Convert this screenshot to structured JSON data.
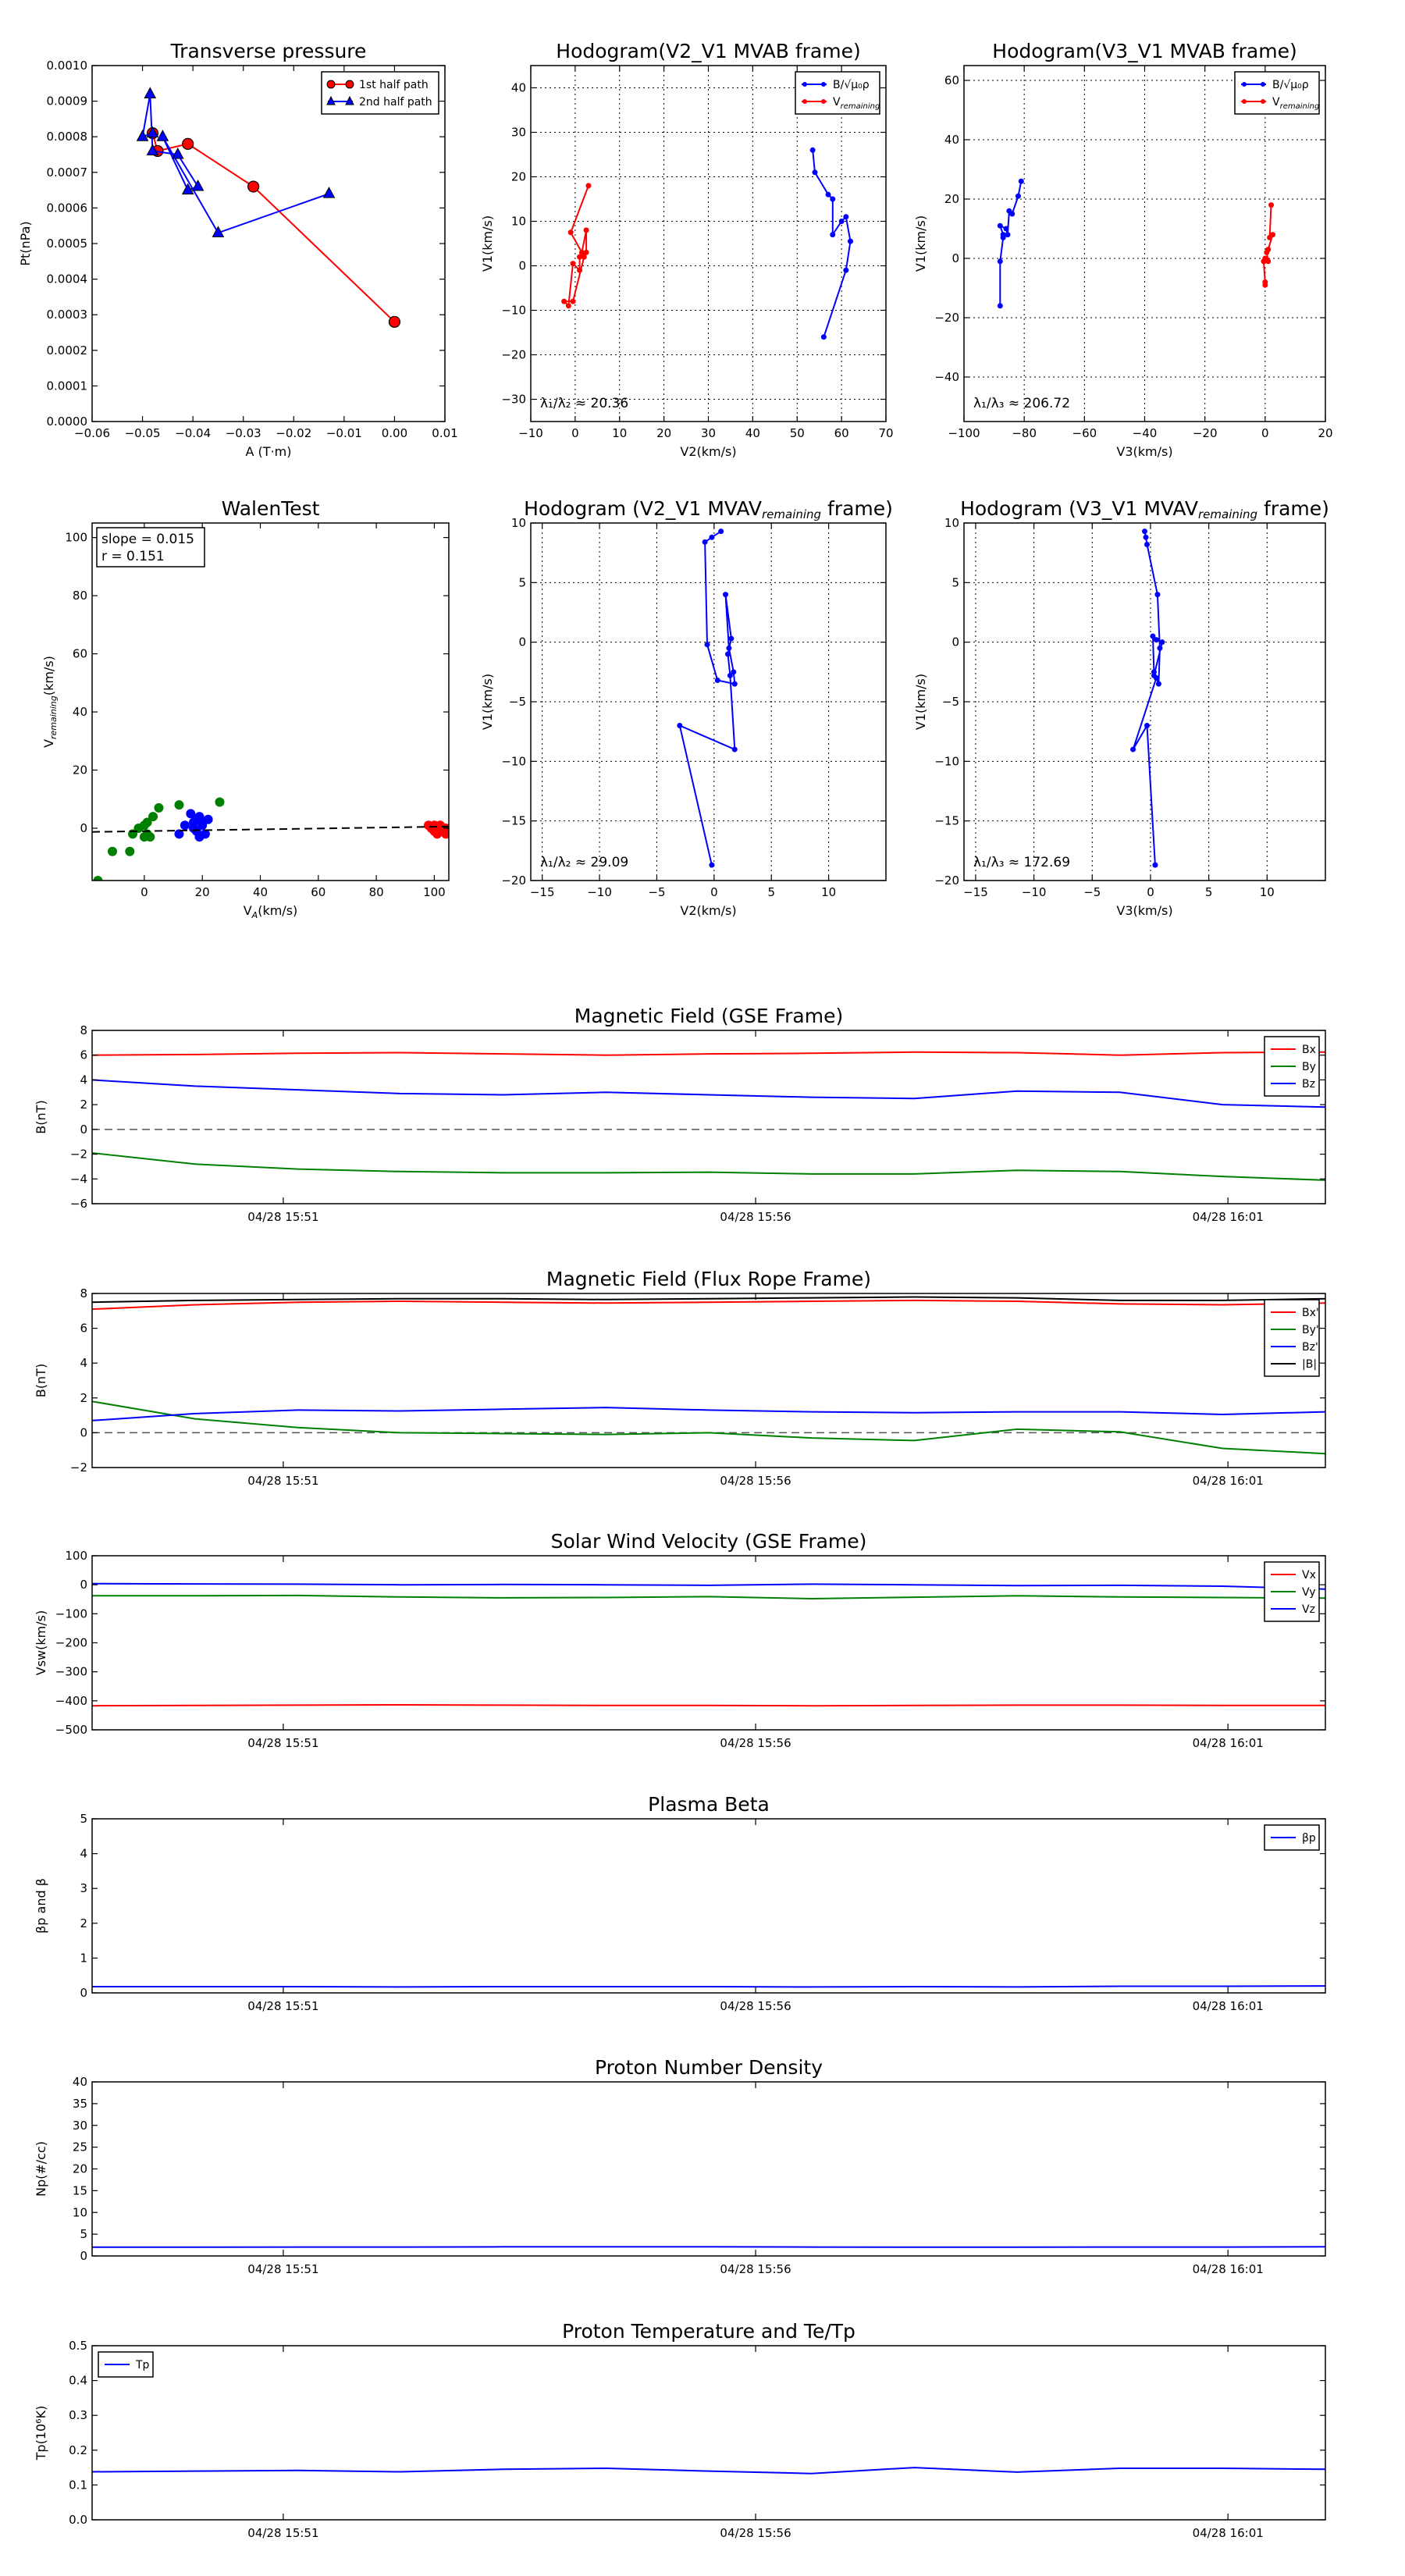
{
  "colors": {
    "red": "#ff0000",
    "blue": "#0000ff",
    "green": "#008000",
    "black": "#000000"
  },
  "time_ticks": [
    "04/28 15:51",
    "04/28 15:56",
    "04/28 16:01"
  ],
  "time_fracs": [
    0.155,
    0.538,
    0.921
  ],
  "chart_data": [
    {
      "id": "transverse-pressure",
      "type": "line",
      "title": "Transverse pressure",
      "xlabel": "A (T·m)",
      "ylabel": "Pt(nPa)",
      "xlim": [
        -0.06,
        0.01
      ],
      "ylim": [
        0,
        0.001
      ],
      "xticks": [
        -0.06,
        -0.05,
        -0.04,
        -0.03,
        -0.02,
        -0.01,
        0.0,
        0.01
      ],
      "xtick_labels": [
        "−0.06",
        "−0.05",
        "−0.04",
        "−0.03",
        "−0.02",
        "−0.01",
        "0.00",
        "0.01"
      ],
      "yticks": [
        0,
        0.0001,
        0.0002,
        0.0003,
        0.0004,
        0.0005,
        0.0006,
        0.0007,
        0.0008,
        0.0009,
        0.001
      ],
      "ytick_labels": [
        "0.0000",
        "0.0001",
        "0.0002",
        "0.0003",
        "0.0004",
        "0.0005",
        "0.0006",
        "0.0007",
        "0.0008",
        "0.0009",
        "0.0010"
      ],
      "legend": "top-right",
      "series": [
        {
          "name": "1st half path",
          "color": "red",
          "marker": "circle",
          "x": [
            0.0,
            -0.028,
            -0.041,
            -0.047,
            -0.048
          ],
          "y": [
            0.00028,
            0.00066,
            0.00078,
            0.00076,
            0.00081
          ]
        },
        {
          "name": "2nd half path",
          "color": "blue",
          "marker": "triangle",
          "x": [
            -0.048,
            -0.05,
            -0.0485,
            -0.048,
            -0.043,
            -0.039,
            -0.041,
            -0.046,
            -0.035,
            -0.013
          ],
          "y": [
            0.00081,
            0.0008,
            0.00092,
            0.00076,
            0.00075,
            0.00066,
            0.00065,
            0.0008,
            0.00053,
            0.00064
          ]
        }
      ]
    },
    {
      "id": "hodogram-v2v1-mvab",
      "type": "line",
      "title": "Hodogram(V2_V1 MVAB frame)",
      "xlabel": "V2(km/s)",
      "ylabel": "V1(km/s)",
      "xlim": [
        -10,
        70
      ],
      "ylim": [
        -35,
        45
      ],
      "xticks": [
        -10,
        0,
        10,
        20,
        30,
        40,
        50,
        60,
        70
      ],
      "xtick_labels": [
        "−10",
        "0",
        "10",
        "20",
        "30",
        "40",
        "50",
        "60",
        "70"
      ],
      "yticks": [
        -30,
        -20,
        -10,
        0,
        10,
        20,
        30,
        40
      ],
      "ytick_labels": [
        "−30",
        "−20",
        "−10",
        "0",
        "10",
        "20",
        "30",
        "40"
      ],
      "grid": true,
      "legend": "top-right",
      "annotation": "λ₁/λ₂ ≈ 20.36",
      "series": [
        {
          "name": "B/√μ₀ρ",
          "color": "blue",
          "marker": "dot",
          "x": [
            53.5,
            54,
            57,
            58,
            58,
            60,
            61,
            62,
            61,
            56
          ],
          "y": [
            26,
            21,
            16,
            15,
            7,
            10,
            11,
            5.5,
            -1,
            -16
          ]
        },
        {
          "name": "V",
          "name_sub": "remaining",
          "color": "red",
          "marker": "dot",
          "x": [
            3,
            -1,
            1.5,
            2.5,
            2.5,
            1,
            1,
            -0.5,
            -1.5,
            -2.5,
            -0.5,
            2
          ],
          "y": [
            18,
            7.5,
            3,
            8,
            3,
            2,
            -1,
            0.5,
            -9,
            -8,
            -8,
            2
          ]
        }
      ]
    },
    {
      "id": "hodogram-v3v1-mvab",
      "type": "line",
      "title": "Hodogram(V3_V1 MVAB frame)",
      "xlabel": "V3(km/s)",
      "ylabel": "V1(km/s)",
      "xlim": [
        -100,
        20
      ],
      "ylim": [
        -55,
        65
      ],
      "xticks": [
        -100,
        -80,
        -60,
        -40,
        -20,
        0,
        20
      ],
      "xtick_labels": [
        "−100",
        "−80",
        "−60",
        "−40",
        "−20",
        "0",
        "20"
      ],
      "yticks": [
        -40,
        -20,
        0,
        20,
        40,
        60
      ],
      "ytick_labels": [
        "−40",
        "−20",
        "0",
        "20",
        "40",
        "60"
      ],
      "grid": true,
      "legend": "top-right",
      "annotation": "λ₁/λ₃ ≈ 206.72",
      "series": [
        {
          "name": "B/√μ₀ρ",
          "color": "blue",
          "marker": "dot",
          "x": [
            -81,
            -82,
            -84,
            -85,
            -85.5,
            -86,
            -88,
            -87,
            -87,
            -88,
            -88
          ],
          "y": [
            26,
            21,
            15,
            16,
            8,
            10,
            11,
            8,
            7,
            -1,
            -16
          ]
        },
        {
          "name": "V",
          "name_sub": "remaining",
          "color": "red",
          "marker": "dot",
          "x": [
            2,
            1.5,
            2.5,
            1,
            0.5,
            1,
            0,
            -0.5,
            0,
            0
          ],
          "y": [
            18,
            7,
            8,
            3,
            2,
            -1,
            0,
            -1,
            -8,
            -9
          ]
        }
      ]
    },
    {
      "id": "walen-test",
      "type": "scatter",
      "title": "WalenTest",
      "xlabel": "V",
      "xlabel_sub": "A",
      "xlabel_unit": "(km/s)",
      "ylabel": "V",
      "ylabel_sub": "remaining",
      "ylabel_unit": "(km/s)",
      "xlim": [
        -18,
        105
      ],
      "ylim": [
        -18,
        105
      ],
      "xticks": [
        0,
        20,
        40,
        60,
        80,
        100
      ],
      "xtick_labels": [
        "0",
        "20",
        "40",
        "60",
        "80",
        "100"
      ],
      "yticks": [
        0,
        20,
        40,
        60,
        80,
        100
      ],
      "ytick_labels": [
        "0",
        "20",
        "40",
        "60",
        "80",
        "100"
      ],
      "box_line1": "slope = 0.015",
      "box_line2": "r = 0.151",
      "fit": {
        "slope": 0.015,
        "intercept": -1
      },
      "series": [
        {
          "color": "green",
          "x": [
            -16,
            -11,
            -5,
            -4,
            -2,
            0,
            0,
            1,
            1,
            2,
            3,
            5,
            12,
            26
          ],
          "y": [
            -18,
            -8,
            -8,
            -2,
            0,
            1,
            -3,
            2,
            -2,
            -3,
            4,
            7,
            8,
            9
          ]
        },
        {
          "color": "blue",
          "x": [
            12,
            14,
            16,
            17,
            17,
            18,
            18,
            19,
            19,
            20,
            20,
            21,
            22
          ],
          "y": [
            -2,
            1,
            5,
            2,
            0,
            -1,
            3,
            4,
            -3,
            1,
            2,
            -2,
            3
          ]
        },
        {
          "color": "red",
          "x": [
            98,
            99,
            100,
            100,
            101,
            101,
            102,
            102,
            103,
            103,
            104,
            104
          ],
          "y": [
            1,
            0,
            -1,
            1,
            0,
            -2,
            1,
            -1,
            0,
            -1,
            0,
            -2
          ]
        }
      ]
    },
    {
      "id": "hodogram-v2v1-mvav",
      "type": "line",
      "title": "Hodogram (V2_V1 MVAV",
      "title_sub": "remaining",
      "title_end": " frame)",
      "xlabel": "V2(km/s)",
      "ylabel": "V1(km/s)",
      "xlim": [
        -16,
        15
      ],
      "ylim": [
        -20,
        10
      ],
      "xticks": [
        -15,
        -10,
        -5,
        0,
        5,
        10
      ],
      "xtick_labels": [
        "−15",
        "−10",
        "−5",
        "0",
        "5",
        "10"
      ],
      "yticks": [
        -20,
        -15,
        -10,
        -5,
        0,
        5,
        10
      ],
      "ytick_labels": [
        "−20",
        "−15",
        "−10",
        "−5",
        "0",
        "5",
        "10"
      ],
      "grid": true,
      "annotation": "λ₁/λ₂ ≈ 29.09",
      "series": [
        {
          "color": "blue",
          "marker": "dot",
          "x": [
            0.6,
            -0.2,
            -0.8,
            -0.6,
            0.3,
            1.8,
            1.7,
            1.3,
            1.0,
            1.5,
            1.2,
            1.4,
            1.8,
            -3.0,
            -0.2
          ],
          "y": [
            9.3,
            8.8,
            8.4,
            -0.2,
            -3.2,
            -3.5,
            -2.5,
            -0.5,
            4.0,
            0.3,
            -1.0,
            -2.8,
            -9.0,
            -7.0,
            -18.7
          ]
        }
      ]
    },
    {
      "id": "hodogram-v3v1-mvav",
      "type": "line",
      "title": "Hodogram (V3_V1 MVAV",
      "title_sub": "remaining",
      "title_end": " frame)",
      "xlabel": "V3(km/s)",
      "ylabel": "V1(km/s)",
      "xlim": [
        -16,
        15
      ],
      "ylim": [
        -20,
        10
      ],
      "xticks": [
        -15,
        -10,
        -5,
        0,
        5,
        10
      ],
      "xtick_labels": [
        "−15",
        "−10",
        "−5",
        "0",
        "5",
        "10"
      ],
      "yticks": [
        -20,
        -15,
        -10,
        -5,
        0,
        5,
        10
      ],
      "ytick_labels": [
        "−20",
        "−15",
        "−10",
        "−5",
        "0",
        "5",
        "10"
      ],
      "grid": true,
      "annotation": "λ₁/λ₃ ≈ 172.69",
      "series": [
        {
          "color": "blue",
          "marker": "dot",
          "x": [
            -0.5,
            -0.4,
            -0.3,
            0.6,
            0.8,
            0.7,
            0.3,
            0.2,
            0.5,
            1.0,
            0.3,
            0.5,
            -1.5,
            -0.3,
            0.4
          ],
          "y": [
            9.3,
            8.8,
            8.2,
            4.0,
            -0.5,
            -3.5,
            -2.5,
            0.5,
            0.2,
            0.0,
            -2.8,
            -3.0,
            -9.0,
            -7.0,
            -18.7
          ]
        }
      ]
    },
    {
      "id": "mag-gse",
      "type": "line",
      "title": "Magnetic Field (GSE Frame)",
      "ylabel": "B(nT)",
      "ylim": [
        -6,
        8
      ],
      "yticks": [
        -6,
        -4,
        -2,
        0,
        2,
        4,
        6,
        8
      ],
      "ytick_labels": [
        "−6",
        "−4",
        "−2",
        "0",
        "2",
        "4",
        "6",
        "8"
      ],
      "zero_line": true,
      "legend": "top-right",
      "series": [
        {
          "name": "Bx",
          "color": "red",
          "y": [
            6.0,
            6.05,
            6.15,
            6.2,
            6.1,
            6.0,
            6.1,
            6.15,
            6.25,
            6.2,
            6.0,
            6.2,
            6.25
          ]
        },
        {
          "name": "By",
          "color": "green",
          "y": [
            -1.9,
            -2.8,
            -3.2,
            -3.4,
            -3.5,
            -3.5,
            -3.45,
            -3.6,
            -3.6,
            -3.3,
            -3.4,
            -3.8,
            -4.1
          ]
        },
        {
          "name": "Bz",
          "color": "blue",
          "y": [
            4.0,
            3.5,
            3.2,
            2.9,
            2.8,
            3.0,
            2.8,
            2.6,
            2.5,
            3.1,
            3.0,
            2.0,
            1.8
          ]
        }
      ]
    },
    {
      "id": "mag-fluxrope",
      "type": "line",
      "title": "Magnetic Field (Flux Rope Frame)",
      "ylabel": "B(nT)",
      "ylim": [
        -2,
        8
      ],
      "yticks": [
        -2,
        0,
        2,
        4,
        6,
        8
      ],
      "ytick_labels": [
        "−2",
        "0",
        "2",
        "4",
        "6",
        "8"
      ],
      "zero_line": true,
      "legend": "top-right",
      "series": [
        {
          "name": "Bx'",
          "color": "red",
          "y": [
            7.1,
            7.35,
            7.5,
            7.55,
            7.5,
            7.45,
            7.5,
            7.55,
            7.6,
            7.55,
            7.4,
            7.35,
            7.45
          ]
        },
        {
          "name": "By'",
          "color": "green",
          "y": [
            1.8,
            0.8,
            0.3,
            0.0,
            -0.05,
            -0.1,
            0.0,
            -0.3,
            -0.45,
            0.2,
            0.05,
            -0.9,
            -1.2
          ]
        },
        {
          "name": "Bz'",
          "color": "blue",
          "y": [
            0.7,
            1.1,
            1.3,
            1.25,
            1.35,
            1.45,
            1.3,
            1.2,
            1.15,
            1.2,
            1.2,
            1.05,
            1.2
          ]
        },
        {
          "name": "|B|",
          "color": "black",
          "y": [
            7.5,
            7.6,
            7.65,
            7.7,
            7.7,
            7.65,
            7.7,
            7.75,
            7.8,
            7.75,
            7.6,
            7.6,
            7.7
          ]
        }
      ]
    },
    {
      "id": "solar-wind-velocity",
      "type": "line",
      "title": "Solar Wind Velocity (GSE Frame)",
      "ylabel": "Vsw(km/s)",
      "ylim": [
        -500,
        100
      ],
      "yticks": [
        -500,
        -400,
        -300,
        -200,
        -100,
        0,
        100
      ],
      "ytick_labels": [
        "−500",
        "−400",
        "−300",
        "−200",
        "−100",
        "0",
        "100"
      ],
      "legend": "top-right",
      "series": [
        {
          "name": "Vx",
          "color": "red",
          "y": [
            -417,
            -416,
            -415,
            -414,
            -415,
            -416,
            -416,
            -417,
            -416,
            -415,
            -415,
            -416,
            -416
          ]
        },
        {
          "name": "Vy",
          "color": "green",
          "y": [
            -38,
            -38,
            -37,
            -42,
            -45,
            -44,
            -41,
            -48,
            -43,
            -38,
            -42,
            -44,
            -46
          ]
        },
        {
          "name": "Vz",
          "color": "blue",
          "y": [
            4,
            3,
            2,
            0,
            1,
            0,
            -2,
            2,
            0,
            -3,
            -2,
            -5,
            -15
          ]
        }
      ]
    },
    {
      "id": "plasma-beta",
      "type": "line",
      "title": "Plasma Beta",
      "ylabel": "βp and β",
      "ylim": [
        0,
        5
      ],
      "yticks": [
        0,
        1,
        2,
        3,
        4,
        5
      ],
      "ytick_labels": [
        "0",
        "1",
        "2",
        "3",
        "4",
        "5"
      ],
      "legend": "top-right",
      "series": [
        {
          "name": "βp",
          "color": "blue",
          "y": [
            0.18,
            0.18,
            0.18,
            0.17,
            0.18,
            0.18,
            0.18,
            0.17,
            0.18,
            0.17,
            0.19,
            0.19,
            0.2
          ]
        }
      ]
    },
    {
      "id": "proton-density",
      "type": "line",
      "title": "Proton Number Density",
      "ylabel": "Np(#/cc)",
      "ylim": [
        0,
        40
      ],
      "yticks": [
        0,
        5,
        10,
        15,
        20,
        25,
        30,
        35,
        40
      ],
      "ytick_labels": [
        "0",
        "5",
        "10",
        "15",
        "20",
        "25",
        "30",
        "35",
        "40"
      ],
      "series": [
        {
          "color": "blue",
          "y": [
            2.0,
            2.0,
            2.05,
            2.05,
            2.1,
            2.1,
            2.1,
            2.05,
            2.0,
            2.0,
            2.05,
            2.05,
            2.1
          ]
        }
      ]
    },
    {
      "id": "proton-temperature",
      "type": "line",
      "title": "Proton Temperature and Te/Tp",
      "ylabel": "Tp(10⁶K)",
      "ylim": [
        0,
        0.5
      ],
      "yticks": [
        0,
        0.1,
        0.2,
        0.3,
        0.4,
        0.5
      ],
      "ytick_labels": [
        "0.0",
        "0.1",
        "0.2",
        "0.3",
        "0.4",
        "0.5"
      ],
      "legend": "top-left",
      "series": [
        {
          "name": "Tp",
          "color": "blue",
          "y": [
            0.138,
            0.14,
            0.142,
            0.138,
            0.145,
            0.148,
            0.14,
            0.133,
            0.15,
            0.137,
            0.148,
            0.148,
            0.145
          ]
        }
      ]
    }
  ]
}
